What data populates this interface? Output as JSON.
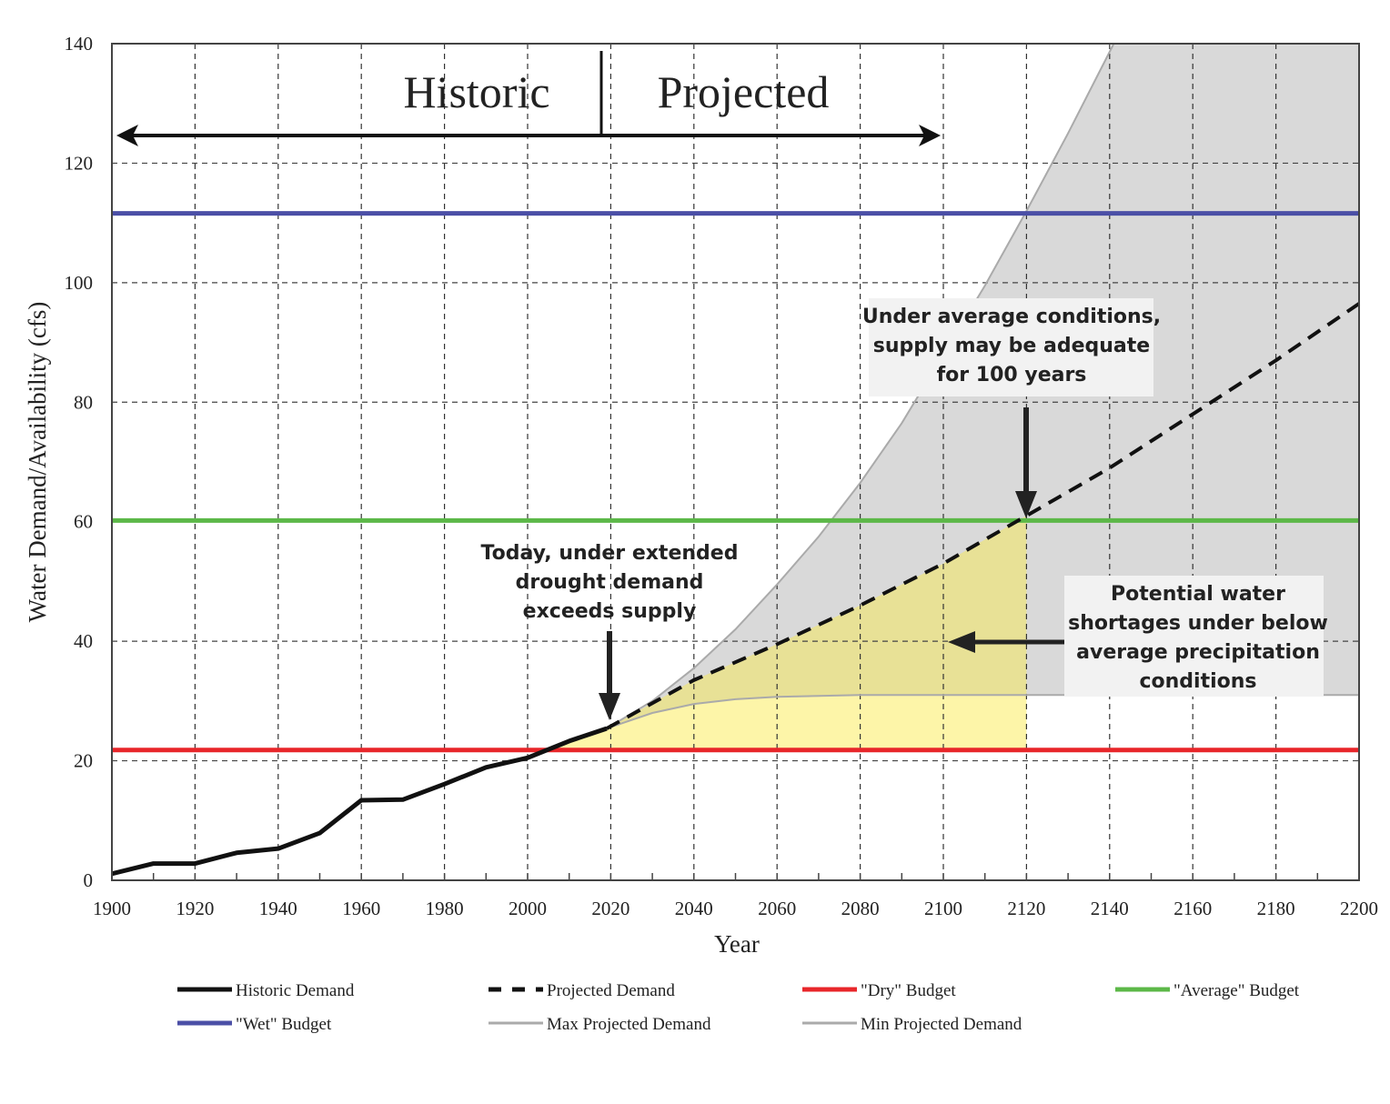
{
  "chart_data": {
    "type": "line",
    "title": "",
    "xlabel": "Year",
    "ylabel": "Water Demand/Availability  (cfs)",
    "xlim": [
      1900,
      2200
    ],
    "ylim": [
      0,
      140
    ],
    "xticks": [
      1900,
      1920,
      1940,
      1960,
      1980,
      2000,
      2020,
      2040,
      2060,
      2080,
      2100,
      2120,
      2140,
      2160,
      2180,
      2200
    ],
    "yticks": [
      0,
      20,
      40,
      60,
      80,
      100,
      120,
      140
    ],
    "grid": true,
    "series": [
      {
        "name": "Historic Demand",
        "style": "solid",
        "color": "#111111",
        "x": [
          1900,
          1910,
          1920,
          1930,
          1940,
          1950,
          1960,
          1970,
          1980,
          1990,
          2000,
          2010,
          2019
        ],
        "y": [
          1.1,
          2.8,
          2.8,
          4.6,
          5.3,
          7.9,
          13.4,
          13.5,
          16.1,
          18.9,
          20.5,
          23.3,
          25.4
        ]
      },
      {
        "name": "Projected Demand",
        "style": "dashed",
        "color": "#111111",
        "x": [
          2019,
          2040,
          2060,
          2080,
          2100,
          2120,
          2140,
          2160,
          2180,
          2200
        ],
        "y": [
          25.4,
          33.5,
          39.5,
          46,
          53,
          61,
          69,
          78,
          87,
          96.5
        ]
      },
      {
        "name": "\"Dry\" Budget",
        "style": "solid",
        "color": "#e8262a",
        "x": [
          1900,
          2200
        ],
        "y": [
          21.8,
          21.8
        ]
      },
      {
        "name": "\"Average\" Budget",
        "style": "solid",
        "color": "#5cb848",
        "x": [
          1900,
          2200
        ],
        "y": [
          60.2,
          60.2
        ]
      },
      {
        "name": "\"Wet\" Budget",
        "style": "solid",
        "color": "#4b4fa6",
        "x": [
          1900,
          2200
        ],
        "y": [
          111.6,
          111.6
        ]
      },
      {
        "name": "Max Projected Demand",
        "style": "solid",
        "color": "#aaaaaa",
        "x": [
          2019,
          2030,
          2040,
          2050,
          2060,
          2070,
          2080,
          2090,
          2100,
          2110,
          2120,
          2130,
          2141
        ],
        "y": [
          25.4,
          30,
          35.5,
          42,
          49.5,
          57.5,
          66.5,
          76.5,
          88,
          99.5,
          112,
          125,
          140
        ]
      },
      {
        "name": "Min Projected Demand",
        "style": "solid",
        "color": "#aaaaaa",
        "x": [
          2019,
          2030,
          2040,
          2050,
          2060,
          2080,
          2100,
          2120,
          2200
        ],
        "y": [
          25.4,
          28,
          29.5,
          30.3,
          30.7,
          31,
          31,
          31,
          31
        ]
      }
    ],
    "annotations": {
      "historic": "Historic",
      "projected": "Projected",
      "today": [
        "Today, under extended",
        "drought demand",
        "exceeds supply"
      ],
      "average": [
        "Under average conditions,",
        "supply may be adequate",
        "for 100 years"
      ],
      "shortage": [
        "Potential water",
        "shortages under below",
        "average precipitation",
        "conditions"
      ]
    },
    "legend": {
      "placement": "bottom",
      "entries": [
        "Historic Demand",
        "Projected Demand",
        "\"Dry\" Budget",
        "\"Average\" Budget",
        "\"Wet\" Budget",
        "Max Projected Demand",
        "Min Projected Demand"
      ]
    },
    "colors": {
      "gray_fill": "#d9d9d9",
      "yellow_low": "#fdf5a8",
      "yellow_high": "#e8e196"
    }
  }
}
